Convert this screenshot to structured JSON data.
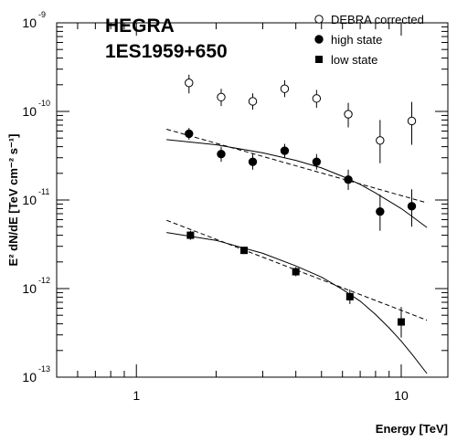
{
  "chart_data": {
    "type": "scatter",
    "title": "HEGRA",
    "subtitle": "1ES1959+650",
    "xlabel": "Energy  [TeV]",
    "ylabel": "E² dN/dE  [TeV cm⁻² s⁻¹]",
    "xscale": "log",
    "yscale": "log",
    "xlim": [
      0.5,
      15
    ],
    "ylim": [
      1e-13,
      1e-09
    ],
    "x_tick_labels": [
      "1",
      "10"
    ],
    "y_tick_labels": [
      {
        "base": "10",
        "exp": "-9"
      },
      {
        "base": "10",
        "exp": "-10"
      },
      {
        "base": "10",
        "exp": "-11"
      },
      {
        "base": "10",
        "exp": "-12"
      },
      {
        "base": "10",
        "exp": "-13"
      }
    ],
    "legend_position": "top-right",
    "series": [
      {
        "name": "DEBRA corrected",
        "marker": "open-circle",
        "points": [
          {
            "x": 1.58,
            "y": 2.1e-10,
            "ylo": 1.6e-10,
            "yhi": 2.6e-10
          },
          {
            "x": 2.09,
            "y": 1.45e-10,
            "ylo": 1.15e-10,
            "yhi": 1.8e-10
          },
          {
            "x": 2.75,
            "y": 1.3e-10,
            "ylo": 1.05e-10,
            "yhi": 1.6e-10
          },
          {
            "x": 3.63,
            "y": 1.8e-10,
            "ylo": 1.45e-10,
            "yhi": 2.25e-10
          },
          {
            "x": 4.79,
            "y": 1.4e-10,
            "ylo": 1.1e-10,
            "yhi": 1.75e-10
          },
          {
            "x": 6.31,
            "y": 9.3e-11,
            "ylo": 6.6e-11,
            "yhi": 1.25e-10
          },
          {
            "x": 8.32,
            "y": 4.7e-11,
            "ylo": 2.6e-11,
            "yhi": 8e-11
          },
          {
            "x": 10.96,
            "y": 7.8e-11,
            "ylo": 4.2e-11,
            "yhi": 1.28e-10
          }
        ]
      },
      {
        "name": "high state",
        "marker": "filled-circle",
        "points": [
          {
            "x": 1.58,
            "y": 5.6e-11,
            "ylo": 4.8e-11,
            "yhi": 6.5e-11
          },
          {
            "x": 2.09,
            "y": 3.3e-11,
            "ylo": 2.7e-11,
            "yhi": 4e-11
          },
          {
            "x": 2.75,
            "y": 2.7e-11,
            "ylo": 2.2e-11,
            "yhi": 3.3e-11
          },
          {
            "x": 3.63,
            "y": 3.6e-11,
            "ylo": 3e-11,
            "yhi": 4.3e-11
          },
          {
            "x": 4.79,
            "y": 2.7e-11,
            "ylo": 2.2e-11,
            "yhi": 3.3e-11
          },
          {
            "x": 6.31,
            "y": 1.7e-11,
            "ylo": 1.3e-11,
            "yhi": 2.2e-11
          },
          {
            "x": 8.32,
            "y": 7.4e-12,
            "ylo": 4.5e-12,
            "yhi": 1.15e-11
          },
          {
            "x": 10.96,
            "y": 8.5e-12,
            "ylo": 5e-12,
            "yhi": 1.32e-11
          }
        ]
      },
      {
        "name": "low state",
        "marker": "filled-square",
        "points": [
          {
            "x": 1.6,
            "y": 4e-12,
            "ylo": 3.55e-12,
            "yhi": 4.5e-12
          },
          {
            "x": 2.55,
            "y": 2.7e-12,
            "ylo": 2.45e-12,
            "yhi": 2.95e-12
          },
          {
            "x": 4.0,
            "y": 1.55e-12,
            "ylo": 1.38e-12,
            "yhi": 1.75e-12
          },
          {
            "x": 6.4,
            "y": 8.1e-13,
            "ylo": 6.7e-13,
            "yhi": 9.8e-13
          },
          {
            "x": 10.0,
            "y": 4.2e-13,
            "ylo": 2.8e-13,
            "yhi": 6.2e-13
          }
        ]
      }
    ],
    "fits": [
      {
        "label": "",
        "style": "solid",
        "points": [
          [
            1.3,
            4.8e-11
          ],
          [
            2.0,
            4.2e-11
          ],
          [
            3.0,
            3.4e-11
          ],
          [
            4.0,
            2.8e-11
          ],
          [
            5.0,
            2.3e-11
          ],
          [
            6.0,
            1.85e-11
          ],
          [
            7.0,
            1.5e-11
          ],
          [
            8.0,
            1.2e-11
          ],
          [
            9.0,
            9.7e-12
          ],
          [
            10.0,
            8e-12
          ],
          [
            11.0,
            6.5e-12
          ],
          [
            12.5,
            4.9e-12
          ]
        ]
      },
      {
        "label": "",
        "style": "dashed",
        "points": [
          [
            1.3,
            6.3e-11
          ],
          [
            12.5,
            9.3e-12
          ]
        ]
      },
      {
        "label": "",
        "style": "solid",
        "points": [
          [
            1.3,
            4.3e-12
          ],
          [
            2.0,
            3.5e-12
          ],
          [
            3.0,
            2.5e-12
          ],
          [
            4.0,
            1.8e-12
          ],
          [
            5.0,
            1.35e-12
          ],
          [
            6.0,
            9.8e-13
          ],
          [
            7.0,
            7.2e-13
          ],
          [
            8.0,
            5.1e-13
          ],
          [
            9.0,
            3.6e-13
          ],
          [
            10.0,
            2.55e-13
          ],
          [
            11.0,
            1.8e-13
          ],
          [
            12.5,
            1.1e-13
          ]
        ]
      },
      {
        "label": "",
        "style": "dashed",
        "points": [
          [
            1.3,
            5.9e-12
          ],
          [
            12.5,
            4.4e-13
          ]
        ]
      }
    ]
  }
}
